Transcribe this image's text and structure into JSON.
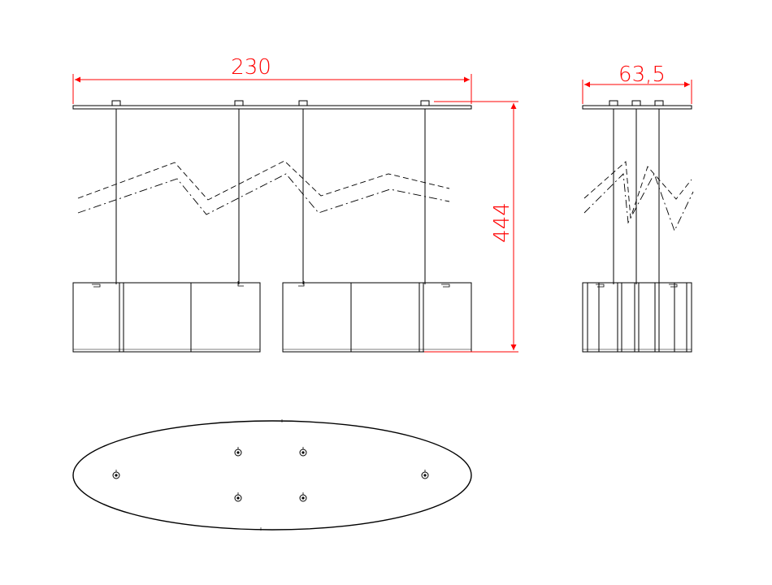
{
  "drawing": {
    "colors": {
      "line": "#000000",
      "dimension": "#ff0000",
      "background": "#ffffff"
    },
    "front_view": {
      "width_label": "230",
      "height_label": "444"
    },
    "side_view": {
      "width_label": "63,5"
    },
    "top_view": {
      "mount_points": 6
    }
  }
}
